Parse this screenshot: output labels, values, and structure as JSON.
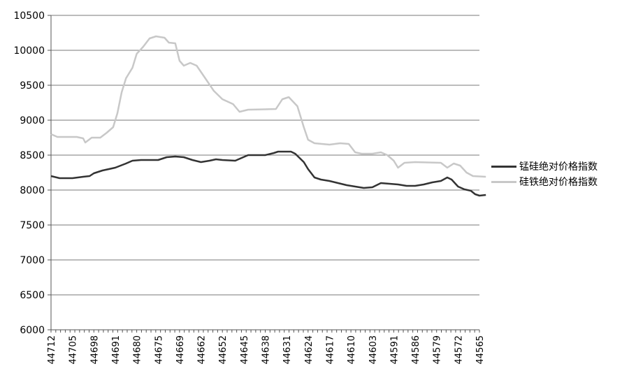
{
  "chart_data": {
    "type": "line",
    "title": "",
    "xlabel": "",
    "ylabel": "",
    "ylim": [
      6000,
      10500
    ],
    "yticks": [
      "6000",
      "6500",
      "7000",
      "7500",
      "8000",
      "8500",
      "9000",
      "9500",
      "10000",
      "10500"
    ],
    "xtick_labels": [
      "44712",
      "44705",
      "44698",
      "44691",
      "44680",
      "44675",
      "44669",
      "44662",
      "44652",
      "44645",
      "44638",
      "44631",
      "44624",
      "44617",
      "44610",
      "44603",
      "44591",
      "44586",
      "44579",
      "44572",
      "44565"
    ],
    "grid": "horizontal",
    "legend_position": "right",
    "series": [
      {
        "name": "锰硅绝对价格指数",
        "color": "#333333",
        "values": [
          [
            0,
            8200
          ],
          [
            0.4,
            8170
          ],
          [
            1,
            8170
          ],
          [
            1.5,
            8190
          ],
          [
            1.8,
            8200
          ],
          [
            2.0,
            8240
          ],
          [
            2.4,
            8280
          ],
          [
            2.7,
            8300
          ],
          [
            3.0,
            8320
          ],
          [
            3.5,
            8380
          ],
          [
            3.8,
            8420
          ],
          [
            4.2,
            8430
          ],
          [
            5.0,
            8430
          ],
          [
            5.4,
            8470
          ],
          [
            5.8,
            8480
          ],
          [
            6.2,
            8470
          ],
          [
            6.6,
            8430
          ],
          [
            7.0,
            8400
          ],
          [
            7.4,
            8420
          ],
          [
            7.7,
            8440
          ],
          [
            8.0,
            8430
          ],
          [
            8.6,
            8420
          ],
          [
            8.9,
            8460
          ],
          [
            9.2,
            8500
          ],
          [
            10.0,
            8500
          ],
          [
            10.4,
            8530
          ],
          [
            10.6,
            8550
          ],
          [
            11.2,
            8550
          ],
          [
            11.4,
            8520
          ],
          [
            11.8,
            8400
          ],
          [
            12.0,
            8300
          ],
          [
            12.3,
            8180
          ],
          [
            12.6,
            8150
          ],
          [
            13.0,
            8130
          ],
          [
            13.4,
            8100
          ],
          [
            13.8,
            8070
          ],
          [
            14.2,
            8050
          ],
          [
            14.6,
            8030
          ],
          [
            15.0,
            8040
          ],
          [
            15.4,
            8100
          ],
          [
            15.8,
            8090
          ],
          [
            16.2,
            8080
          ],
          [
            16.6,
            8060
          ],
          [
            17.0,
            8060
          ],
          [
            17.4,
            8080
          ],
          [
            17.8,
            8110
          ],
          [
            18.2,
            8130
          ],
          [
            18.5,
            8180
          ],
          [
            18.7,
            8150
          ],
          [
            19.0,
            8050
          ],
          [
            19.3,
            8010
          ],
          [
            19.6,
            7990
          ],
          [
            19.8,
            7940
          ],
          [
            20.0,
            7920
          ],
          [
            20.3,
            7930
          ]
        ]
      },
      {
        "name": "硅铁绝对价格指数",
        "color": "#c8c8c8",
        "values": [
          [
            0,
            8800
          ],
          [
            0.3,
            8760
          ],
          [
            1.2,
            8760
          ],
          [
            1.5,
            8740
          ],
          [
            1.6,
            8680
          ],
          [
            1.9,
            8750
          ],
          [
            2.3,
            8750
          ],
          [
            2.6,
            8820
          ],
          [
            2.9,
            8900
          ],
          [
            3.1,
            9100
          ],
          [
            3.3,
            9400
          ],
          [
            3.5,
            9600
          ],
          [
            3.8,
            9750
          ],
          [
            4.0,
            9950
          ],
          [
            4.3,
            10050
          ],
          [
            4.6,
            10170
          ],
          [
            4.9,
            10200
          ],
          [
            5.3,
            10180
          ],
          [
            5.5,
            10110
          ],
          [
            5.8,
            10100
          ],
          [
            6.0,
            9850
          ],
          [
            6.2,
            9780
          ],
          [
            6.5,
            9820
          ],
          [
            6.8,
            9780
          ],
          [
            7.2,
            9600
          ],
          [
            7.6,
            9420
          ],
          [
            8.0,
            9300
          ],
          [
            8.5,
            9230
          ],
          [
            8.8,
            9120
          ],
          [
            9.2,
            9150
          ],
          [
            10.5,
            9160
          ],
          [
            10.8,
            9300
          ],
          [
            11.1,
            9330
          ],
          [
            11.5,
            9200
          ],
          [
            11.8,
            8900
          ],
          [
            12.0,
            8720
          ],
          [
            12.3,
            8670
          ],
          [
            13.0,
            8650
          ],
          [
            13.5,
            8670
          ],
          [
            13.9,
            8660
          ],
          [
            14.2,
            8540
          ],
          [
            14.5,
            8520
          ],
          [
            15.0,
            8520
          ],
          [
            15.4,
            8540
          ],
          [
            15.7,
            8500
          ],
          [
            16.0,
            8420
          ],
          [
            16.2,
            8320
          ],
          [
            16.5,
            8390
          ],
          [
            17.0,
            8400
          ],
          [
            18.2,
            8390
          ],
          [
            18.5,
            8320
          ],
          [
            18.8,
            8380
          ],
          [
            19.1,
            8350
          ],
          [
            19.4,
            8250
          ],
          [
            19.7,
            8200
          ],
          [
            20.3,
            8190
          ]
        ]
      }
    ]
  }
}
